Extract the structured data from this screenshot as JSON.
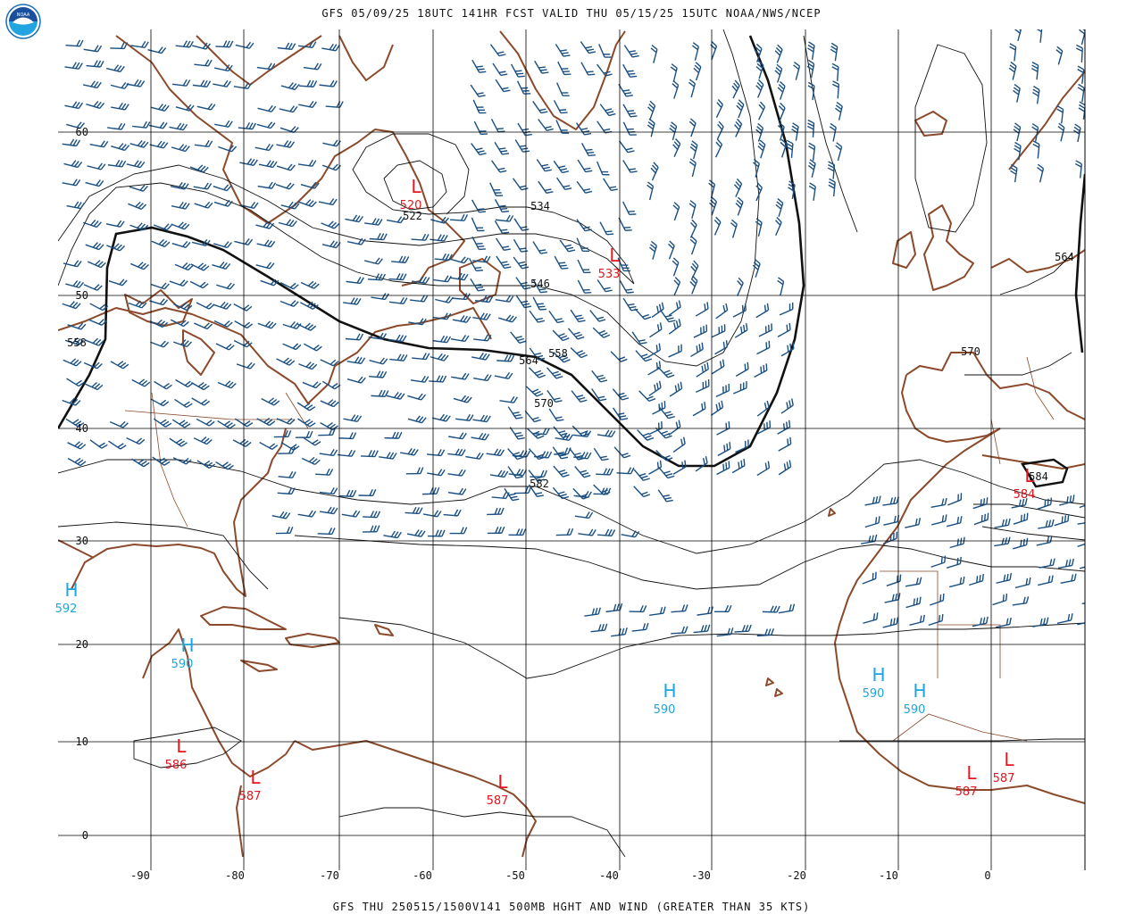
{
  "header": {
    "title": "GFS 05/09/25 18UTC 141HR FCST VALID THU 05/15/25 15UTC NOAA/NWS/NCEP"
  },
  "footer": {
    "text": "GFS THU 250515/1500V141 500MB HGHT AND WIND (GREATER THAN 35 KTS)"
  },
  "logo": {
    "text": "NOAA",
    "icon": "noaa-logo-icon"
  },
  "colors": {
    "land": "#8B4A2B",
    "wind": "#1A4F82",
    "low": "#E8141E",
    "high": "#1AA7E0",
    "contour": "#111111",
    "grid": "#000000"
  },
  "axes": {
    "lon_labels": [
      "-90",
      "-80",
      "-70",
      "-60",
      "-50",
      "-40",
      "-30",
      "-20",
      "-10",
      "0"
    ],
    "lat_labels": [
      "60",
      "50",
      "40",
      "30",
      "20",
      "10",
      "0"
    ]
  },
  "pressure_systems": [
    {
      "type": "L",
      "value": "520"
    },
    {
      "type": "L",
      "value": "533"
    },
    {
      "type": "L",
      "value": "584"
    },
    {
      "type": "L",
      "value": "586"
    },
    {
      "type": "L",
      "value": "587"
    },
    {
      "type": "L",
      "value": "587"
    },
    {
      "type": "L",
      "value": "587"
    },
    {
      "type": "L",
      "value": "587"
    },
    {
      "type": "H",
      "value": "592"
    },
    {
      "type": "H",
      "value": "590"
    },
    {
      "type": "H",
      "value": "590"
    },
    {
      "type": "H",
      "value": "590"
    },
    {
      "type": "H",
      "value": "590"
    }
  ],
  "contour_labels": [
    "534",
    "546",
    "558",
    "558",
    "564",
    "564",
    "570",
    "570",
    "582",
    "522",
    "584"
  ]
}
